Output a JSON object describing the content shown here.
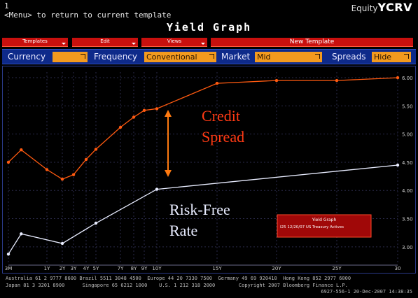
{
  "header": {
    "cmd_number": "1",
    "menu_hint": "<Menu> to return to current template",
    "ticker_prefix": "Equity",
    "ticker_code": "YCRV",
    "title": "Yield Graph"
  },
  "menu": {
    "templates": "Templates",
    "edit": "Edit",
    "views": "Views",
    "new_template": "New Template"
  },
  "filters": {
    "currency_label": "Currency",
    "currency_value": "",
    "frequency_label": "Frequency",
    "frequency_value": "Conventional",
    "market_label": "Market",
    "market_value": "Mid",
    "spreads_label": "Spreads",
    "spreads_value": "Hide"
  },
  "colors": {
    "corporate_curve": "#ff5a10",
    "treasury_curve": "#e8ecff",
    "annotation_text": "#ff3a14",
    "arrow": "#ff7a10",
    "filter_bar": "#0e2a8a",
    "filter_box": "#f39a1e",
    "menu_red": "#c8100e"
  },
  "icons": {
    "dropdown": "dropdown-triangle-icon",
    "spread_arrow": "double-arrow-icon"
  },
  "annotations": {
    "credit_spread_line1": "Credit",
    "credit_spread_line2": "Spread",
    "risk_free_line1": "Risk-Free",
    "risk_free_line2": "Rate"
  },
  "legend_box": {
    "title": "Yield Graph",
    "line1": "I25 12/20/07  US Treasury Actives",
    "line2": ""
  },
  "chart_data": {
    "type": "line",
    "x_ticks": [
      "3M",
      "1Y",
      "2Y",
      "3Y",
      "4Y",
      "5Y",
      "7Y",
      "8Y",
      "9Y",
      "10Y",
      "15Y",
      "20Y",
      "25Y",
      "30"
    ],
    "y_ticks": [
      "3.00",
      "3.50",
      "4.00",
      "4.50",
      "5.00",
      "5.50",
      "6.00"
    ],
    "ylim": [
      2.7,
      6.1
    ],
    "grid": true,
    "series": [
      {
        "x": [
          0.25,
          0.5,
          1,
          2,
          3,
          4,
          5,
          7,
          8,
          9,
          10,
          15,
          20,
          25,
          30
        ],
        "values": [
          4.5,
          4.72,
          4.37,
          4.2,
          4.28,
          4.55,
          4.73,
          5.12,
          5.3,
          5.42,
          5.45,
          5.9,
          5.95,
          5.95,
          6.0
        ]
      },
      {
        "x": [
          0.25,
          0.5,
          2,
          5,
          10,
          30
        ],
        "values": [
          2.87,
          3.23,
          3.06,
          3.42,
          4.02,
          4.45
        ]
      }
    ]
  },
  "footer": {
    "line1": "Australia 61 2 9777 8600 Brazil 5511 3048 4500  Europe 44 20 7330 7500  Germany 49 69 920410  Hong Kong 852 2977 6000",
    "line2": "Japan 81 3 3201 8900      Singapore 65 6212 1000    U.S. 1 212 318 2000        Copyright 2007 Bloomberg Finance L.P.",
    "line3": "6927-556-1 20-Dec-2007 14:38:35"
  }
}
